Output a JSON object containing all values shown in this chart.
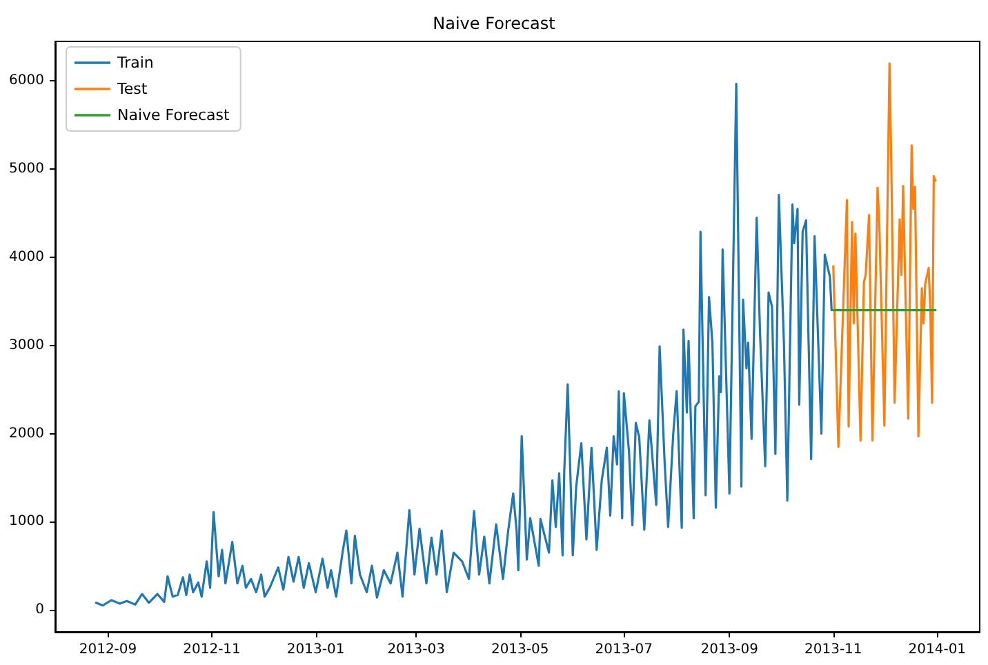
{
  "chart_data": {
    "type": "line",
    "title": "Naive Forecast",
    "legend": "top left",
    "grid": false,
    "marker": "none",
    "line_style": "solid",
    "xlim": [
      "2012-08-01",
      "2014-01-26"
    ],
    "xticks": [
      "2012-09",
      "2012-11",
      "2013-01",
      "2013-03",
      "2013-05",
      "2013-07",
      "2013-09",
      "2013-11",
      "2014-01"
    ],
    "ylim": [
      -250,
      6450
    ],
    "yticks": [
      0,
      1000,
      2000,
      3000,
      4000,
      5000,
      6000
    ],
    "series": [
      {
        "name": "Train",
        "color": "#1f77b4",
        "x": [
          "2012-08-25",
          "2012-08-29",
          "2012-09-03",
          "2012-09-08",
          "2012-09-12",
          "2012-09-17",
          "2012-09-21",
          "2012-09-25",
          "2012-09-30",
          "2012-10-04",
          "2012-10-06",
          "2012-10-09",
          "2012-10-12",
          "2012-10-15",
          "2012-10-17",
          "2012-10-19",
          "2012-10-21",
          "2012-10-24",
          "2012-10-26",
          "2012-10-29",
          "2012-10-31",
          "2012-11-02",
          "2012-11-05",
          "2012-11-07",
          "2012-11-09",
          "2012-11-13",
          "2012-11-16",
          "2012-11-19",
          "2012-11-21",
          "2012-11-24",
          "2012-11-27",
          "2012-11-30",
          "2012-12-02",
          "2012-12-05",
          "2012-12-10",
          "2012-12-13",
          "2012-12-16",
          "2012-12-19",
          "2012-12-22",
          "2012-12-25",
          "2012-12-28",
          "2013-01-01",
          "2013-01-05",
          "2013-01-08",
          "2013-01-10",
          "2013-01-13",
          "2013-01-17",
          "2013-01-19",
          "2013-01-22",
          "2013-01-24",
          "2013-01-27",
          "2013-01-31",
          "2013-02-03",
          "2013-02-06",
          "2013-02-10",
          "2013-02-14",
          "2013-02-18",
          "2013-02-21",
          "2013-02-25",
          "2013-02-28",
          "2013-03-03",
          "2013-03-07",
          "2013-03-10",
          "2013-03-13",
          "2013-03-16",
          "2013-03-19",
          "2013-03-23",
          "2013-03-28",
          "2013-04-01",
          "2013-04-04",
          "2013-04-07",
          "2013-04-10",
          "2013-04-13",
          "2013-04-17",
          "2013-04-21",
          "2013-04-24",
          "2013-04-27",
          "2013-04-29",
          "2013-04-30",
          "2013-05-02",
          "2013-05-05",
          "2013-05-07",
          "2013-05-12",
          "2013-05-13",
          "2013-05-18",
          "2013-05-20",
          "2013-05-22",
          "2013-05-24",
          "2013-05-26",
          "2013-05-27",
          "2013-05-29",
          "2013-06-01",
          "2013-06-03",
          "2013-06-06",
          "2013-06-09",
          "2013-06-12",
          "2013-06-15",
          "2013-06-18",
          "2013-06-21",
          "2013-06-23",
          "2013-06-25",
          "2013-06-27",
          "2013-06-28",
          "2013-06-30",
          "2013-07-01",
          "2013-07-04",
          "2013-07-06",
          "2013-07-08",
          "2013-07-10",
          "2013-07-13",
          "2013-07-16",
          "2013-07-18",
          "2013-07-20",
          "2013-07-22",
          "2013-07-25",
          "2013-07-27",
          "2013-07-30",
          "2013-08-01",
          "2013-08-04",
          "2013-08-05",
          "2013-08-07",
          "2013-08-08",
          "2013-08-11",
          "2013-08-12",
          "2013-08-14",
          "2013-08-15",
          "2013-08-18",
          "2013-08-20",
          "2013-08-22",
          "2013-08-24",
          "2013-08-26",
          "2013-08-27",
          "2013-08-28",
          "2013-09-01",
          "2013-09-05",
          "2013-09-08",
          "2013-09-09",
          "2013-09-11",
          "2013-09-12",
          "2013-09-14",
          "2013-09-17",
          "2013-09-19",
          "2013-09-22",
          "2013-09-24",
          "2013-09-26",
          "2013-09-28",
          "2013-09-30",
          "2013-10-03",
          "2013-10-05",
          "2013-10-08",
          "2013-10-09",
          "2013-10-11",
          "2013-10-12",
          "2013-10-14",
          "2013-10-16",
          "2013-10-17",
          "2013-10-19",
          "2013-10-21",
          "2013-10-25",
          "2013-10-27",
          "2013-10-30",
          "2013-10-31"
        ],
        "values": [
          80,
          50,
          110,
          70,
          100,
          60,
          180,
          80,
          180,
          90,
          380,
          150,
          170,
          370,
          170,
          400,
          200,
          310,
          150,
          550,
          250,
          1110,
          380,
          680,
          300,
          770,
          300,
          500,
          250,
          350,
          200,
          400,
          150,
          250,
          480,
          230,
          600,
          320,
          600,
          250,
          530,
          200,
          580,
          250,
          450,
          150,
          680,
          900,
          300,
          840,
          400,
          200,
          500,
          140,
          450,
          300,
          650,
          150,
          1130,
          400,
          920,
          300,
          820,
          400,
          900,
          200,
          650,
          550,
          350,
          1120,
          400,
          830,
          300,
          970,
          350,
          890,
          1320,
          900,
          450,
          1970,
          570,
          1040,
          500,
          1030,
          650,
          1470,
          940,
          1550,
          620,
          1580,
          2560,
          620,
          1400,
          1890,
          800,
          1840,
          680,
          1470,
          1840,
          1070,
          1970,
          1650,
          2480,
          1040,
          2460,
          1800,
          960,
          2120,
          1960,
          910,
          2150,
          1670,
          1190,
          2990,
          1650,
          940,
          2000,
          2480,
          930,
          3180,
          2240,
          3050,
          1040,
          2310,
          2360,
          4290,
          1300,
          3550,
          3030,
          1160,
          2650,
          2470,
          4090,
          1320,
          5970,
          1400,
          3520,
          2740,
          3030,
          1940,
          4450,
          3130,
          1630,
          3600,
          3440,
          1770,
          4710,
          3030,
          1240,
          4600,
          4160,
          4550,
          2330,
          4290,
          4420,
          3470,
          1710,
          4240,
          2000,
          4030,
          3780,
          3400
        ]
      },
      {
        "name": "Test",
        "color": "#ff7f0e",
        "x": [
          "2013-11-01",
          "2013-11-04",
          "2013-11-08",
          "2013-11-09",
          "2013-11-10",
          "2013-11-12",
          "2013-11-13",
          "2013-11-14",
          "2013-11-17",
          "2013-11-19",
          "2013-11-20",
          "2013-11-22",
          "2013-11-24",
          "2013-11-27",
          "2013-11-28",
          "2013-12-01",
          "2013-12-04",
          "2013-12-05",
          "2013-12-07",
          "2013-12-10",
          "2013-12-11",
          "2013-12-12",
          "2013-12-15",
          "2013-12-17",
          "2013-12-18",
          "2013-12-19",
          "2013-12-21",
          "2013-12-23",
          "2013-12-24",
          "2013-12-25",
          "2013-12-27",
          "2013-12-28",
          "2013-12-29",
          "2013-12-30",
          "2013-12-31"
        ],
        "values": [
          3900,
          1850,
          4100,
          4650,
          2080,
          4400,
          3250,
          4270,
          1920,
          3720,
          3800,
          4480,
          1920,
          4790,
          4400,
          2090,
          6200,
          5150,
          2350,
          4430,
          3800,
          4810,
          2170,
          5270,
          4550,
          4800,
          1970,
          3650,
          3250,
          3700,
          3880,
          3420,
          2350,
          4920,
          4870
        ]
      },
      {
        "name": "Naive Forecast",
        "color": "#2ca02c",
        "x": [
          "2013-11-01",
          "2013-12-31"
        ],
        "values": [
          3400,
          3400
        ]
      }
    ]
  }
}
